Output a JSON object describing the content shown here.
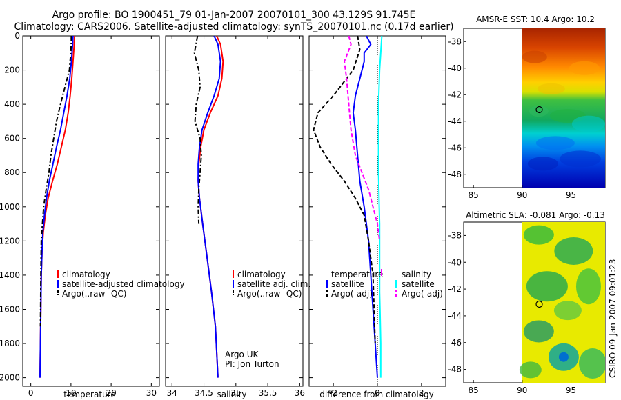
{
  "header": {
    "line1": "Argo profile: BO 1900451_79 01-Jan-2007 20070101_300 43.129S 91.745E",
    "line2": "Climatology: CARS2006. Satellite-adjusted climatology: synTS_20070101.nc (0.17d earlier)"
  },
  "credit": {
    "org": "Argo UK",
    "pi": "PI: Jon Turton",
    "stamp": "CSIRO 09-Jan-2007 09:01:23"
  },
  "colors": {
    "climatology": "#ff0000",
    "satellite": "#0000ff",
    "argo": "#000000",
    "salinity_satellite": "#00ffff",
    "salinity_argo": "#ff00ff"
  },
  "chart_data": [
    {
      "type": "line",
      "id": "temperature",
      "xlabel": "temperature",
      "xlim": [
        -2,
        32
      ],
      "ylim": [
        0,
        2050
      ],
      "y_reversed": true,
      "xticks": [
        0,
        10,
        20,
        30
      ],
      "yticks": [
        0,
        200,
        400,
        600,
        800,
        1000,
        1200,
        1400,
        1600,
        1800,
        2000
      ],
      "legend": [
        "climatology",
        "satellite-adjusted climatology",
        "Argo(..raw -QC)"
      ],
      "series": [
        {
          "name": "climatology",
          "color": "#ff0000",
          "dash": "solid",
          "x": [
            10.9,
            10.8,
            10.5,
            10.2,
            9.8,
            9.3,
            8.6,
            7.6,
            6.6,
            5.4,
            4.3,
            3.6,
            3.1,
            2.8,
            2.6,
            2.5,
            2.4,
            2.3
          ],
          "y": [
            0,
            50,
            150,
            250,
            350,
            450,
            550,
            650,
            750,
            850,
            950,
            1050,
            1150,
            1250,
            1400,
            1600,
            1800,
            2000
          ]
        },
        {
          "name": "satellite-adjusted climatology",
          "color": "#0000ff",
          "dash": "solid",
          "x": [
            10.5,
            10.4,
            10.1,
            9.7,
            9.0,
            8.2,
            7.4,
            6.4,
            5.5,
            4.6,
            3.9,
            3.4,
            3.0,
            2.8,
            2.6,
            2.5,
            2.4,
            2.3
          ],
          "y": [
            0,
            50,
            150,
            250,
            350,
            450,
            550,
            650,
            750,
            850,
            950,
            1050,
            1150,
            1250,
            1400,
            1600,
            1800,
            2000
          ]
        },
        {
          "name": "Argo(..raw -QC)",
          "color": "#000000",
          "dash": "dashdot",
          "x": [
            10.1,
            10.0,
            9.6,
            8.5,
            7.4,
            6.4,
            5.7,
            5.0,
            4.5,
            3.8,
            3.2,
            2.9,
            2.6,
            2.5,
            2.4
          ],
          "y": [
            0,
            80,
            200,
            300,
            400,
            500,
            600,
            700,
            800,
            900,
            1000,
            1100,
            1200,
            1400,
            1700
          ]
        }
      ]
    },
    {
      "type": "line",
      "id": "salinity",
      "xlabel": "salinity",
      "xlim": [
        33.9,
        36.05
      ],
      "ylim": [
        0,
        2050
      ],
      "y_reversed": true,
      "xticks": [
        34,
        34.5,
        35,
        35.5,
        36
      ],
      "legend": [
        "climatology",
        "satellite adj. clim.",
        "Argo(..raw -QC)"
      ],
      "series": [
        {
          "name": "climatology",
          "color": "#ff0000",
          "dash": "solid",
          "x": [
            34.7,
            34.76,
            34.8,
            34.78,
            34.72,
            34.6,
            34.5,
            34.45,
            34.42,
            34.41,
            34.43,
            34.48,
            34.55,
            34.62,
            34.68,
            34.72
          ],
          "y": [
            0,
            50,
            150,
            250,
            350,
            450,
            550,
            650,
            750,
            850,
            950,
            1100,
            1300,
            1500,
            1700,
            2000
          ]
        },
        {
          "name": "satellite adj. clim.",
          "color": "#0000ff",
          "dash": "solid",
          "x": [
            34.66,
            34.72,
            34.76,
            34.74,
            34.66,
            34.56,
            34.47,
            34.43,
            34.41,
            34.41,
            34.43,
            34.48,
            34.55,
            34.62,
            34.68,
            34.72
          ],
          "y": [
            0,
            50,
            150,
            250,
            350,
            450,
            550,
            650,
            750,
            850,
            950,
            1100,
            1300,
            1500,
            1700,
            2000
          ]
        },
        {
          "name": "Argo(..raw -QC)",
          "color": "#000000",
          "dash": "dashdot",
          "x": [
            34.4,
            34.35,
            34.42,
            34.44,
            34.38,
            34.36,
            34.44,
            34.46,
            34.44,
            34.42,
            34.41,
            34.42
          ],
          "y": [
            0,
            100,
            200,
            300,
            400,
            500,
            600,
            700,
            800,
            900,
            1000,
            1100
          ]
        }
      ]
    },
    {
      "type": "line",
      "id": "difference",
      "xlabel": "difference from climatology",
      "xlim": [
        -3.1,
        3.1
      ],
      "ylim": [
        0,
        2050
      ],
      "y_reversed": true,
      "xticks": [
        -2,
        0,
        2
      ],
      "legend_temperature_title": "temperature",
      "legend_salinity_title": "salinity",
      "legend": [
        "satellite",
        "Argo(-adj)",
        "satellite",
        "Argo(-adj)"
      ],
      "series": [
        {
          "name": "temperature satellite",
          "color": "#0000ff",
          "dash": "solid",
          "x": [
            -0.5,
            -0.3,
            -0.6,
            -0.6,
            -0.8,
            -1.0,
            -1.1,
            -1.0,
            -0.9,
            -0.8,
            -0.6,
            -0.5,
            -0.4,
            -0.3,
            -0.2,
            -0.1,
            0.0
          ],
          "y": [
            0,
            50,
            100,
            150,
            250,
            350,
            450,
            550,
            700,
            850,
            1000,
            1100,
            1200,
            1400,
            1600,
            1800,
            2000
          ]
        },
        {
          "name": "temperature Argo(-adj)",
          "color": "#000000",
          "dash": "dash",
          "x": [
            -0.9,
            -0.8,
            -1.1,
            -2.0,
            -2.7,
            -2.9,
            -2.6,
            -2.1,
            -1.5,
            -1.0,
            -0.6,
            -0.4,
            -0.2,
            -0.1
          ],
          "y": [
            0,
            80,
            200,
            350,
            450,
            550,
            650,
            750,
            850,
            950,
            1050,
            1200,
            1400,
            1800
          ]
        },
        {
          "name": "salinity satellite",
          "color": "#00ffff",
          "dash": "solid",
          "x": [
            0.2,
            0.15,
            0.1,
            0.05,
            0.05,
            0.05,
            0.08,
            0.1,
            0.1,
            0.1,
            0.12,
            0.15,
            0.15,
            0.15
          ],
          "y": [
            0,
            100,
            200,
            400,
            600,
            800,
            1000,
            1100,
            1300,
            1500,
            1600,
            1800,
            1900,
            2000
          ]
        },
        {
          "name": "salinity Argo(-adj)",
          "color": "#ff00ff",
          "dash": "dash",
          "x": [
            -1.3,
            -1.2,
            -1.5,
            -1.4,
            -1.3,
            -1.2,
            -1.0,
            -0.7,
            -0.4,
            -0.2,
            0.0,
            0.1
          ],
          "y": [
            0,
            50,
            150,
            250,
            400,
            550,
            700,
            800,
            900,
            1000,
            1100,
            1200
          ]
        }
      ]
    },
    {
      "type": "heatmap",
      "id": "sst",
      "title": "AMSR-E SST: 10.4  Argo: 10.2",
      "xlim": [
        84,
        98.5
      ],
      "ylim": [
        -49,
        -37
      ],
      "xticks": [
        85,
        90,
        95
      ],
      "yticks": [
        -38,
        -40,
        -42,
        -44,
        -46,
        -48
      ],
      "data_xlim": [
        90,
        98.5
      ],
      "marker": {
        "lon": 91.745,
        "lat": -43.129
      }
    },
    {
      "type": "heatmap",
      "id": "sla",
      "title": "Altimetric SLA: -0.081  Argo: -0.13",
      "xlim": [
        84,
        98.5
      ],
      "ylim": [
        -49,
        -37
      ],
      "xticks": [
        85,
        90,
        95
      ],
      "yticks": [
        -38,
        -40,
        -42,
        -44,
        -46,
        -48
      ],
      "data_xlim": [
        90,
        98.5
      ],
      "marker": {
        "lon": 91.745,
        "lat": -43.129
      }
    }
  ]
}
